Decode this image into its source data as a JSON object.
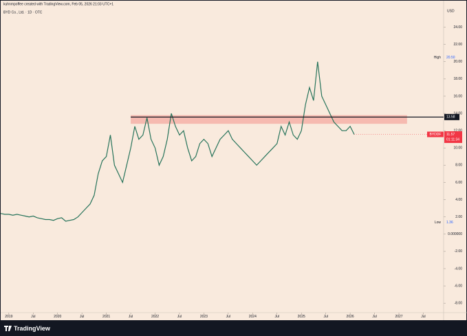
{
  "chart_data": {
    "type": "line",
    "caption": "kuhnmpoffee created with TradingView.com, Feb 05, 2026 21:03 UTC+1",
    "title": "BYD Co., Ltd. · 1D · OTC",
    "currency": "USD",
    "brand": "TradingView",
    "color": "#26735a",
    "x": [
      "2018-11",
      "2018-12",
      "2019-01",
      "2019-02",
      "2019-03",
      "2019-04",
      "2019-05",
      "2019-06",
      "2019-07",
      "2019-08",
      "2019-09",
      "2019-10",
      "2019-11",
      "2019-12",
      "2020-01",
      "2020-02",
      "2020-03",
      "2020-04",
      "2020-05",
      "2020-06",
      "2020-07",
      "2020-08",
      "2020-09",
      "2020-10",
      "2020-11",
      "2020-12",
      "2021-01",
      "2021-02",
      "2021-03",
      "2021-04",
      "2021-05",
      "2021-06",
      "2021-07",
      "2021-08",
      "2021-09",
      "2021-10",
      "2021-11",
      "2021-12",
      "2022-01",
      "2022-02",
      "2022-03",
      "2022-04",
      "2022-05",
      "2022-06",
      "2022-07",
      "2022-08",
      "2022-09",
      "2022-10",
      "2022-11",
      "2022-12",
      "2023-01",
      "2023-02",
      "2023-03",
      "2023-04",
      "2023-05",
      "2023-06",
      "2023-07",
      "2023-08",
      "2023-09",
      "2023-10",
      "2023-11",
      "2023-12",
      "2024-01",
      "2024-02",
      "2024-03",
      "2024-04",
      "2024-05",
      "2024-06",
      "2024-07",
      "2024-08",
      "2024-09",
      "2024-10",
      "2024-11",
      "2024-12",
      "2025-01",
      "2025-02",
      "2025-03",
      "2025-04",
      "2025-05",
      "2025-06",
      "2025-07",
      "2025-08",
      "2025-09",
      "2025-10",
      "2025-11",
      "2025-12",
      "2026-01",
      "2026-02"
    ],
    "values": [
      2.4,
      2.3,
      2.3,
      2.2,
      2.3,
      2.2,
      2.1,
      2.0,
      2.1,
      1.9,
      1.8,
      1.7,
      1.7,
      1.6,
      1.8,
      1.9,
      1.5,
      1.6,
      1.7,
      2.0,
      2.5,
      3.0,
      3.5,
      4.5,
      7.0,
      8.5,
      9.0,
      11.5,
      8.0,
      7.0,
      6.0,
      8.0,
      10.0,
      12.5,
      11.0,
      11.5,
      13.5,
      11.0,
      10.0,
      8.0,
      9.0,
      11.0,
      14.0,
      12.5,
      11.5,
      12.0,
      10.0,
      8.5,
      9.0,
      10.5,
      11.0,
      10.5,
      9.0,
      10.0,
      11.0,
      11.5,
      12.0,
      11.0,
      10.5,
      10.0,
      9.5,
      9.0,
      8.5,
      8.0,
      8.5,
      9.0,
      9.5,
      10.0,
      10.5,
      12.5,
      11.5,
      13.0,
      11.5,
      11.0,
      12.0,
      15.0,
      17.0,
      15.5,
      20.0,
      16.0,
      15.0,
      14.0,
      13.0,
      12.5,
      12.0,
      12.0,
      12.5,
      11.57
    ],
    "xlim": [
      "2018-11",
      "2027-12"
    ],
    "xticks": [
      {
        "value": "2019-01",
        "label": "2019"
      },
      {
        "value": "2019-07",
        "label": "Jul"
      },
      {
        "value": "2020-01",
        "label": "2020"
      },
      {
        "value": "2020-07",
        "label": "Jul"
      },
      {
        "value": "2021-01",
        "label": "2021"
      },
      {
        "value": "2021-07",
        "label": "Jul"
      },
      {
        "value": "2022-01",
        "label": "2022"
      },
      {
        "value": "2022-07",
        "label": "Jul"
      },
      {
        "value": "2023-01",
        "label": "2023"
      },
      {
        "value": "2023-07",
        "label": "Jul"
      },
      {
        "value": "2024-01",
        "label": "2024"
      },
      {
        "value": "2024-07",
        "label": "Jul"
      },
      {
        "value": "2025-01",
        "label": "2025"
      },
      {
        "value": "2025-07",
        "label": "Jul"
      },
      {
        "value": "2026-01",
        "label": "2026"
      },
      {
        "value": "2026-07",
        "label": "Jul"
      },
      {
        "value": "2027-01",
        "label": "2027"
      },
      {
        "value": "2027-07",
        "label": "Jul"
      }
    ],
    "ylim": [
      -9.1,
      25.4
    ],
    "yticks": [
      {
        "value": -8,
        "label": "-8.00"
      },
      {
        "value": -6,
        "label": "-6.00"
      },
      {
        "value": -4,
        "label": "-4.00"
      },
      {
        "value": -2,
        "label": "-2.00"
      },
      {
        "value": 0,
        "label": "0.000000"
      },
      {
        "value": 2,
        "label": "2.00"
      },
      {
        "value": 4,
        "label": "4.00"
      },
      {
        "value": 6,
        "label": "6.00"
      },
      {
        "value": 8,
        "label": "8.00"
      },
      {
        "value": 10,
        "label": "10.00"
      },
      {
        "value": 12,
        "label": "12.00"
      },
      {
        "value": 14,
        "label": "14.00"
      },
      {
        "value": 16,
        "label": "16.00"
      },
      {
        "value": 18,
        "label": "18.00"
      },
      {
        "value": 20,
        "label": "20.00"
      },
      {
        "value": 22,
        "label": "22.00"
      },
      {
        "value": 24,
        "label": "24.00"
      }
    ],
    "zone": {
      "from_x": "2021-07",
      "to_x": "2027-03",
      "low": 12.8,
      "high": 13.8,
      "color": "#f4aaa0"
    },
    "level": {
      "value": 13.58,
      "start_x": "2021-07"
    },
    "high": {
      "label": "High",
      "value": 20.5,
      "value_label": "20.50"
    },
    "low": {
      "label": "Low",
      "value": 1.36
    },
    "last": {
      "symbol": "BYDDF",
      "value": 11.57,
      "countdown": "01:11:34",
      "color": "#f23645"
    }
  }
}
